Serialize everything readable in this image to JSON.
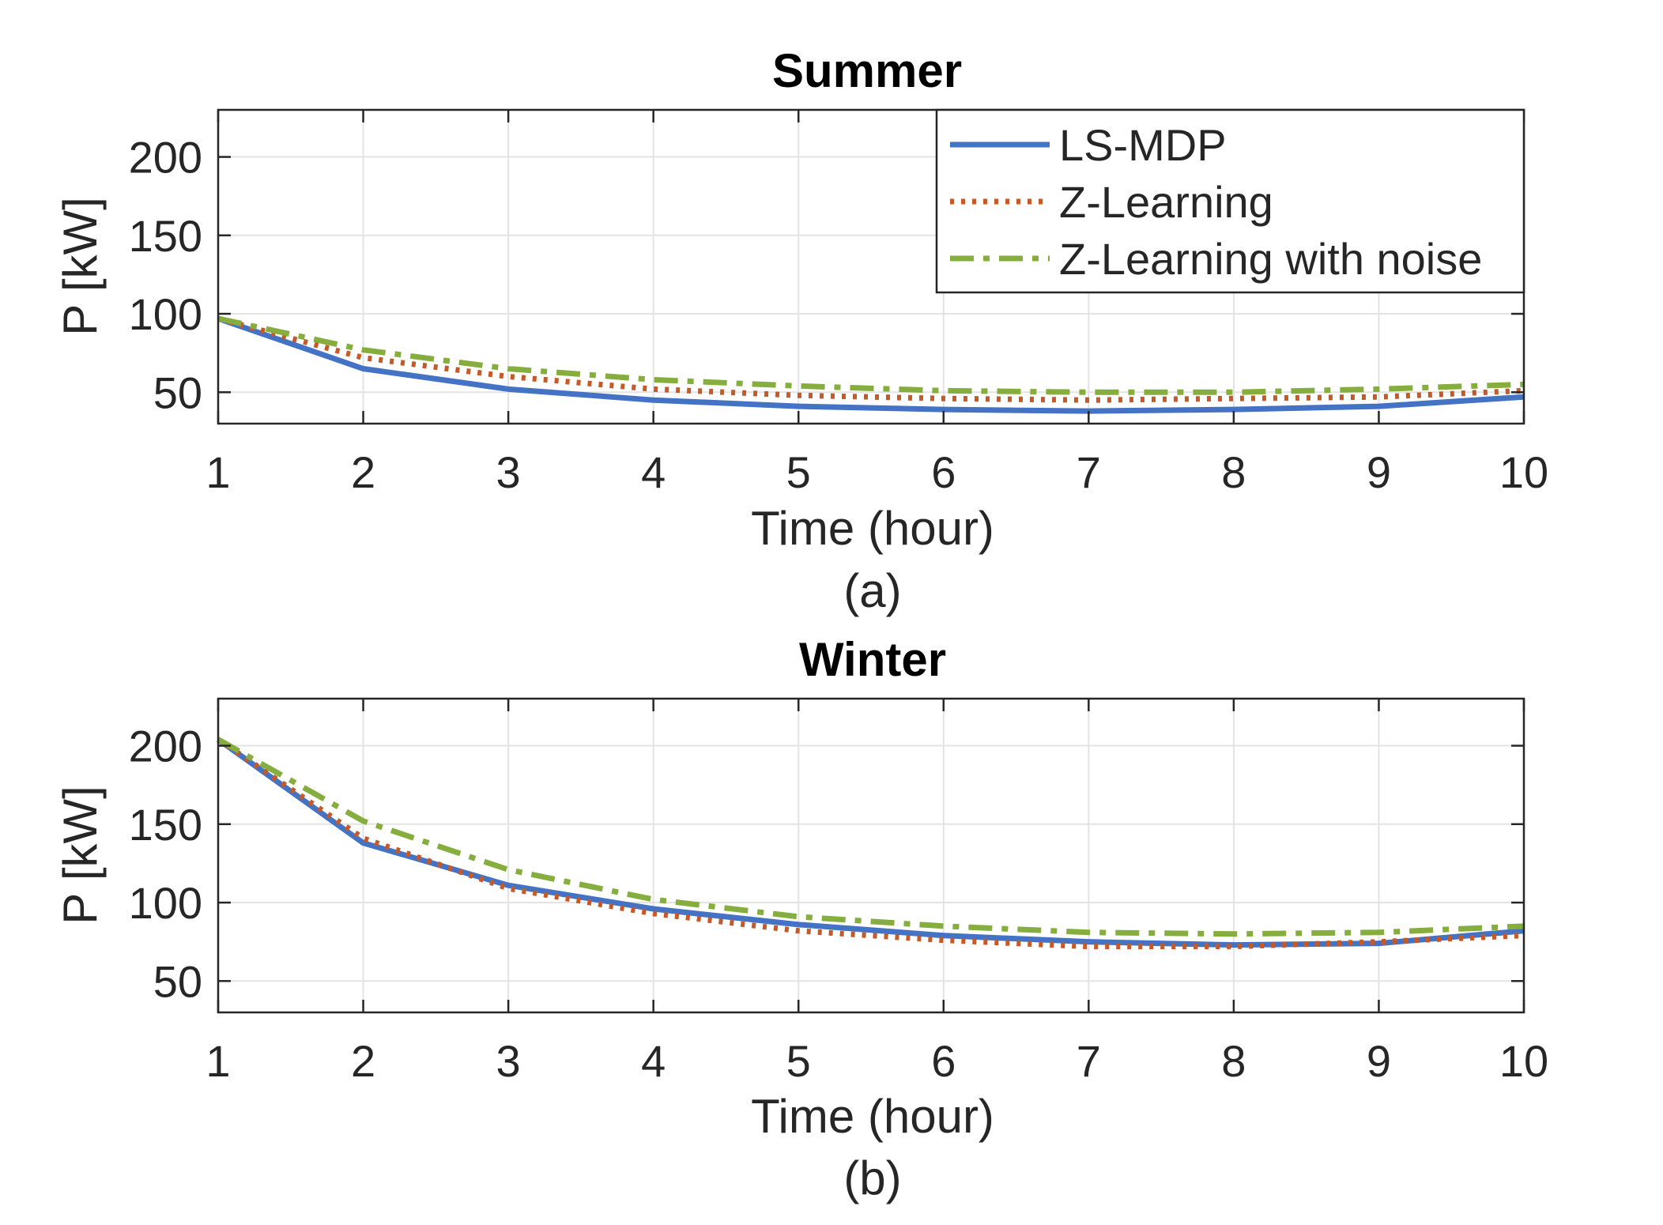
{
  "chart_data": [
    {
      "type": "line",
      "title": "Summer",
      "xlabel": "Time (hour)",
      "ylabel": "P [kW]",
      "caption": "(a)",
      "x": [
        1,
        2,
        3,
        4,
        5,
        6,
        7,
        8,
        9,
        10
      ],
      "xlim": [
        1,
        10
      ],
      "ylim": [
        30,
        230
      ],
      "xticks": [
        1,
        2,
        3,
        4,
        5,
        6,
        7,
        8,
        9,
        10
      ],
      "yticks": [
        50,
        100,
        150,
        200
      ],
      "grid": true,
      "legend": "top-right",
      "series": [
        {
          "name": "LS-MDP",
          "color": "#4472C4",
          "style": "solid",
          "values": [
            97,
            65,
            52,
            45,
            41,
            39,
            38,
            39,
            41,
            47
          ]
        },
        {
          "name": "Z-Learning",
          "color": "#C55A28",
          "style": "dotted",
          "values": [
            97,
            72,
            60,
            52,
            48,
            46,
            45,
            46,
            47,
            51
          ]
        },
        {
          "name": "Z-Learning with noise",
          "color": "#86AE3E",
          "style": "dashdot",
          "values": [
            97,
            77,
            65,
            58,
            54,
            51,
            50,
            50,
            52,
            55
          ]
        }
      ]
    },
    {
      "type": "line",
      "title": "Winter",
      "xlabel": "Time (hour)",
      "ylabel": "P [kW]",
      "caption": "(b)",
      "x": [
        1,
        2,
        3,
        4,
        5,
        6,
        7,
        8,
        9,
        10
      ],
      "xlim": [
        1,
        10
      ],
      "ylim": [
        30,
        230
      ],
      "xticks": [
        1,
        2,
        3,
        4,
        5,
        6,
        7,
        8,
        9,
        10
      ],
      "yticks": [
        50,
        100,
        150,
        200
      ],
      "grid": true,
      "legend": "none",
      "series": [
        {
          "name": "LS-MDP",
          "color": "#4472C4",
          "style": "solid",
          "values": [
            204,
            138,
            111,
            96,
            86,
            79,
            75,
            73,
            74,
            82
          ]
        },
        {
          "name": "Z-Learning",
          "color": "#C55A28",
          "style": "dotted",
          "values": [
            204,
            141,
            109,
            93,
            82,
            76,
            72,
            72,
            75,
            79
          ]
        },
        {
          "name": "Z-Learning with noise",
          "color": "#86AE3E",
          "style": "dashdot",
          "values": [
            204,
            152,
            121,
            102,
            91,
            85,
            81,
            80,
            81,
            85
          ]
        }
      ]
    }
  ]
}
